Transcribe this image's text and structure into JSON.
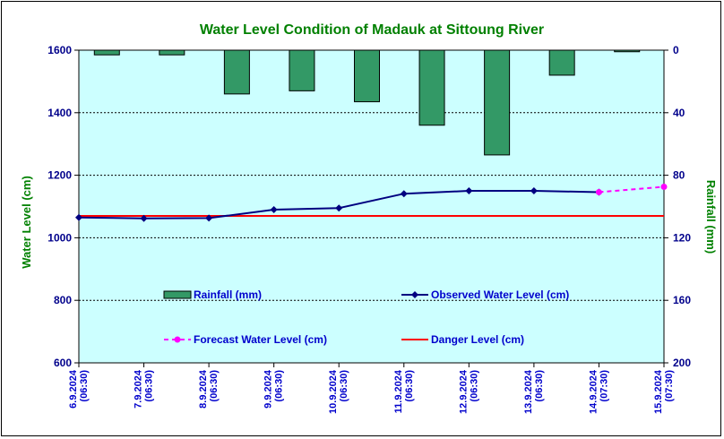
{
  "chart_data": {
    "type": "bar+line",
    "title": "Water Level Condition of Madauk at Sittoung River",
    "ylabel_left": "Water Level (cm)",
    "ylabel_right": "Rainfall (mm)",
    "ylim_left": [
      600,
      1600
    ],
    "yticks_left": [
      "1600",
      "1400",
      "1200",
      "1000",
      "800",
      "600"
    ],
    "ylim_right": [
      0,
      200
    ],
    "yticks_right": [
      "0",
      "40",
      "80",
      "120",
      "160",
      "200"
    ],
    "grid": true,
    "categories": [
      [
        "6.9.2024",
        "(06:30)"
      ],
      [
        "7.9.2024",
        "(06:30)"
      ],
      [
        "8.9.2024",
        "(06:30)"
      ],
      [
        "9.9.2024",
        "(06:30)"
      ],
      [
        "10.9.2024",
        "(06:30)"
      ],
      [
        "11.9.2024",
        "(06:30)"
      ],
      [
        "12.9.2024",
        "(06:30)"
      ],
      [
        "13.9.2024",
        "(06:30)"
      ],
      [
        "14.9.2024",
        "(07:30)"
      ],
      [
        "15.9.2024",
        "(07:30)"
      ]
    ],
    "series": [
      {
        "name": "Rainfall (mm)",
        "type": "bar",
        "axis": "right",
        "color": "#339966",
        "values": [
          3,
          3,
          28,
          26,
          33,
          48,
          67,
          16,
          1,
          null
        ]
      },
      {
        "name": "Observed Water Level (cm)",
        "type": "line",
        "axis": "left",
        "color": "#000080",
        "values": [
          1065,
          1062,
          1063,
          1090,
          1095,
          1141,
          1150,
          1150,
          1146,
          null
        ]
      },
      {
        "name": "Forecast Water Level (cm)",
        "type": "line-dashed",
        "axis": "left",
        "color": "#ff00ff",
        "values": [
          null,
          null,
          null,
          null,
          null,
          null,
          null,
          null,
          1146,
          1163
        ]
      },
      {
        "name": "Danger Level (cm)",
        "type": "hline",
        "axis": "left",
        "color": "#ff0000",
        "values": [
          1070,
          1070,
          1070,
          1070,
          1070,
          1070,
          1070,
          1070,
          1070,
          1070
        ]
      }
    ],
    "legend_placement": "inside-bottom"
  }
}
